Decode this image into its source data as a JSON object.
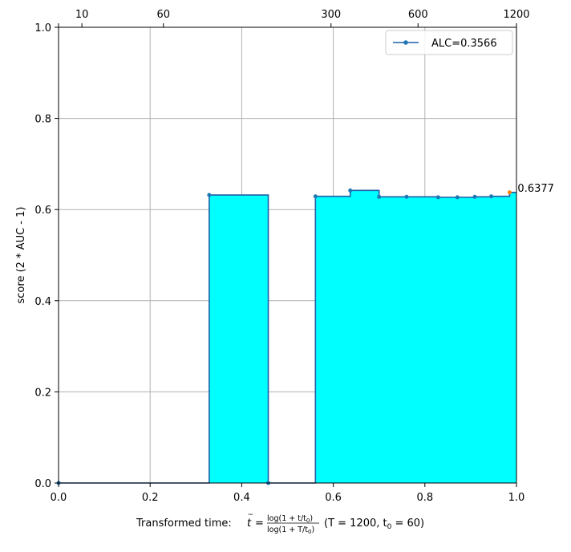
{
  "chart_data": {
    "type": "area",
    "xlabel_prefix": "Transformed time: ",
    "xlabel_formula": {
      "t": "t",
      "eq": "=",
      "num": "log(1 + t/t",
      "num_sub": "0",
      "num_end": ")",
      "den": "log(1 + T/t",
      "den_sub": "0",
      "den_end": ")",
      "params": "(T = 1200,  t",
      "params_sub": "0",
      "params_end": " = 60)"
    },
    "ylabel": "score (2 * AUC - 1)",
    "xlim": [
      0.0,
      1.0
    ],
    "ylim": [
      0.0,
      1.0
    ],
    "x_ticks": [
      {
        "value": 0.0,
        "label": "0.0"
      },
      {
        "value": 0.2,
        "label": "0.2"
      },
      {
        "value": 0.4,
        "label": "0.4"
      },
      {
        "value": 0.6,
        "label": "0.6"
      },
      {
        "value": 0.8,
        "label": "0.8"
      },
      {
        "value": 1.0,
        "label": "1.0"
      }
    ],
    "y_ticks": [
      {
        "value": 0.0,
        "label": "0.0"
      },
      {
        "value": 0.2,
        "label": "0.2"
      },
      {
        "value": 0.4,
        "label": "0.4"
      },
      {
        "value": 0.6,
        "label": "0.6"
      },
      {
        "value": 0.8,
        "label": "0.8"
      },
      {
        "value": 1.0,
        "label": "1.0"
      }
    ],
    "top_ticks": [
      {
        "value": 0.0,
        "label": ""
      },
      {
        "value": 0.051,
        "label": "10"
      },
      {
        "value": 0.229,
        "label": "60"
      },
      {
        "value": 0.595,
        "label": "300"
      },
      {
        "value": 0.785,
        "label": "600"
      },
      {
        "value": 1.0,
        "label": "1200"
      }
    ],
    "grid": true,
    "legend_position": "top-right",
    "series": [
      {
        "name": "ALC=0.3566",
        "line_color": "#1f5fa8",
        "fill_color": "#00ffff",
        "marker_color": "#1f77b4",
        "style": "step-post",
        "points": [
          {
            "x": 0.0,
            "y": 0.0
          },
          {
            "x": 0.329,
            "y": 0.632
          },
          {
            "x": 0.458,
            "y": 0.0
          },
          {
            "x": 0.561,
            "y": 0.629
          },
          {
            "x": 0.637,
            "y": 0.642
          },
          {
            "x": 0.7,
            "y": 0.628
          },
          {
            "x": 0.76,
            "y": 0.628
          },
          {
            "x": 0.829,
            "y": 0.627
          },
          {
            "x": 0.871,
            "y": 0.627
          },
          {
            "x": 0.909,
            "y": 0.628
          },
          {
            "x": 0.945,
            "y": 0.629
          },
          {
            "x": 0.985,
            "y": 0.6377
          }
        ]
      }
    ],
    "final_point": {
      "x": 0.985,
      "y": 0.6377,
      "label": "0.6377",
      "color": "#ff7f0e"
    }
  }
}
